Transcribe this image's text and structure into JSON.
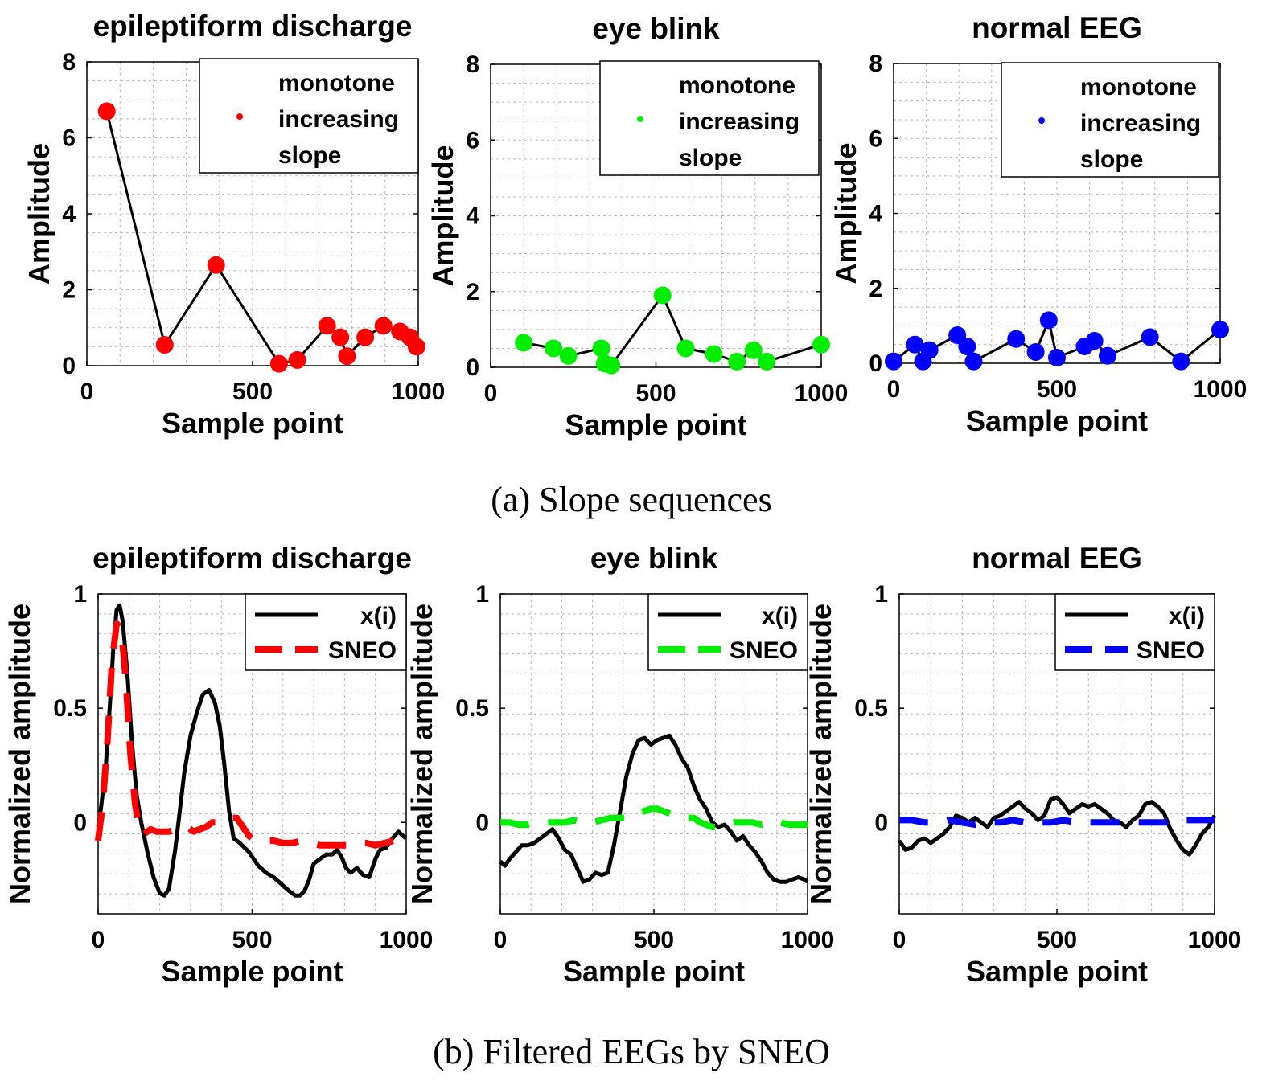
{
  "figure": {
    "caption_a": "(a)  Slope sequences",
    "caption_b": "(b)  Filtered EEGs by SNEO"
  },
  "chart_data": [
    {
      "type": "line",
      "title": "epileptiform discharge",
      "xlabel": "Sample point",
      "ylabel": "Amplitude",
      "xlim": [
        0,
        1000
      ],
      "ylim": [
        0,
        8
      ],
      "xticks": [
        "0",
        "500",
        "1000"
      ],
      "yticks": [
        "0",
        "2",
        "4",
        "6",
        "8"
      ],
      "grid": true,
      "legend": {
        "placement": "top-right",
        "entries": [
          "monotone",
          "increasing",
          "slope"
        ]
      },
      "color": "#ff0000",
      "series": [
        {
          "marker": "circle",
          "x": [
            60,
            235,
            390,
            580,
            635,
            725,
            765,
            785,
            840,
            895,
            945,
            975,
            995
          ],
          "y": [
            6.7,
            0.55,
            2.65,
            0.05,
            0.15,
            1.05,
            0.75,
            0.25,
            0.75,
            1.05,
            0.9,
            0.75,
            0.5
          ]
        }
      ]
    },
    {
      "type": "line",
      "title": "eye blink",
      "xlabel": "Sample point",
      "ylabel": "Amplitude",
      "xlim": [
        0,
        1000
      ],
      "ylim": [
        0,
        8
      ],
      "xticks": [
        "0",
        "500",
        "1000"
      ],
      "yticks": [
        "0",
        "2",
        "4",
        "6",
        "8"
      ],
      "grid": true,
      "legend": {
        "placement": "top-right",
        "entries": [
          "monotone",
          "increasing",
          "slope"
        ]
      },
      "color": "#00ee00",
      "series": [
        {
          "marker": "circle",
          "x": [
            100,
            190,
            235,
            335,
            345,
            365,
            520,
            590,
            675,
            745,
            795,
            835,
            1000
          ],
          "y": [
            0.65,
            0.5,
            0.3,
            0.5,
            0.1,
            0.05,
            1.9,
            0.5,
            0.35,
            0.15,
            0.45,
            0.15,
            0.6
          ]
        }
      ]
    },
    {
      "type": "line",
      "title": "normal EEG",
      "xlabel": "Sample point",
      "ylabel": "Amplitude",
      "xlim": [
        0,
        1000
      ],
      "ylim": [
        0,
        8
      ],
      "xticks": [
        "0",
        "500",
        "1000"
      ],
      "yticks": [
        "0",
        "2",
        "4",
        "6",
        "8"
      ],
      "grid": true,
      "legend": {
        "placement": "top-right",
        "entries": [
          "monotone",
          "increasing",
          "slope"
        ]
      },
      "color": "#0000ff",
      "series": [
        {
          "marker": "circle",
          "x": [
            0,
            65,
            90,
            110,
            195,
            225,
            245,
            375,
            435,
            475,
            500,
            585,
            615,
            655,
            785,
            880,
            1000
          ],
          "y": [
            0.05,
            0.5,
            0.05,
            0.35,
            0.75,
            0.45,
            0.05,
            0.65,
            0.3,
            1.15,
            0.15,
            0.45,
            0.6,
            0.2,
            0.7,
            0.05,
            0.9
          ]
        }
      ]
    },
    {
      "type": "line",
      "title": "epileptiform discharge",
      "xlabel": "Sample point",
      "ylabel": "Normalized amplitude",
      "xlim": [
        0,
        1000
      ],
      "ylim": [
        -0.4,
        1
      ],
      "xticks": [
        "0",
        "500",
        "1000"
      ],
      "yticks": [
        "0",
        "0.5",
        "1"
      ],
      "grid": true,
      "legend": {
        "placement": "top-right"
      },
      "series": [
        {
          "name": "x(i)",
          "color": "#000000",
          "style": "solid",
          "x": [
            0,
            10,
            25,
            40,
            50,
            60,
            70,
            80,
            95,
            110,
            125,
            140,
            160,
            180,
            200,
            215,
            230,
            250,
            265,
            280,
            300,
            320,
            340,
            360,
            380,
            395,
            410,
            425,
            440,
            460,
            475,
            490,
            505,
            520,
            545,
            570,
            595,
            620,
            640,
            655,
            670,
            685,
            700,
            720,
            740,
            760,
            775,
            790,
            805,
            820,
            840,
            860,
            880,
            900,
            915,
            935,
            955,
            975,
            990,
            1000
          ],
          "y": [
            -0.02,
            0.07,
            0.25,
            0.55,
            0.78,
            0.93,
            0.95,
            0.88,
            0.65,
            0.35,
            0.12,
            0.0,
            -0.13,
            -0.24,
            -0.31,
            -0.32,
            -0.29,
            -0.12,
            0.05,
            0.22,
            0.38,
            0.48,
            0.56,
            0.58,
            0.52,
            0.42,
            0.25,
            0.05,
            -0.07,
            -0.09,
            -0.11,
            -0.13,
            -0.16,
            -0.19,
            -0.22,
            -0.24,
            -0.27,
            -0.3,
            -0.32,
            -0.32,
            -0.3,
            -0.25,
            -0.18,
            -0.16,
            -0.14,
            -0.14,
            -0.12,
            -0.15,
            -0.2,
            -0.22,
            -0.2,
            -0.23,
            -0.24,
            -0.16,
            -0.12,
            -0.11,
            -0.07,
            -0.04,
            -0.06,
            -0.07
          ]
        },
        {
          "name": "SNEO",
          "color": "#ff0000",
          "style": "dashed",
          "x": [
            0,
            15,
            30,
            45,
            60,
            75,
            90,
            105,
            120,
            135,
            150,
            170,
            190,
            210,
            230,
            250,
            270,
            290,
            310,
            330,
            350,
            370,
            390,
            410,
            430,
            450,
            470,
            490,
            510,
            540,
            570,
            600,
            630,
            660,
            690,
            720,
            750,
            780,
            810,
            840,
            870,
            900,
            930,
            960,
            990
          ],
          "y": [
            -0.08,
            0.08,
            0.35,
            0.7,
            0.87,
            0.85,
            0.62,
            0.3,
            0.08,
            -0.04,
            -0.05,
            -0.03,
            -0.04,
            -0.04,
            -0.04,
            -0.03,
            -0.02,
            -0.02,
            -0.04,
            -0.03,
            -0.02,
            0.0,
            0.0,
            0.0,
            0.02,
            0.02,
            -0.02,
            -0.06,
            -0.08,
            -0.08,
            -0.08,
            -0.09,
            -0.09,
            -0.08,
            -0.09,
            -0.1,
            -0.1,
            -0.1,
            -0.1,
            -0.09,
            -0.09,
            -0.1,
            -0.09,
            -0.08,
            -0.08
          ]
        }
      ]
    },
    {
      "type": "line",
      "title": "eye blink",
      "xlabel": "Sample point",
      "ylabel": "Normalized amplitude",
      "xlim": [
        0,
        1000
      ],
      "ylim": [
        -0.4,
        1
      ],
      "xticks": [
        "0",
        "500",
        "1000"
      ],
      "yticks": [
        "0",
        "0.5",
        "1"
      ],
      "grid": true,
      "legend": {
        "placement": "top-right"
      },
      "series": [
        {
          "name": "x(i)",
          "color": "#000000",
          "style": "solid",
          "x": [
            0,
            15,
            30,
            50,
            70,
            90,
            110,
            130,
            150,
            170,
            190,
            210,
            230,
            250,
            270,
            290,
            310,
            330,
            350,
            370,
            390,
            410,
            430,
            450,
            470,
            490,
            510,
            530,
            550,
            570,
            590,
            610,
            630,
            650,
            670,
            690,
            710,
            730,
            750,
            770,
            790,
            810,
            830,
            850,
            870,
            890,
            910,
            930,
            950,
            970,
            990,
            1000
          ],
          "y": [
            -0.17,
            -0.19,
            -0.16,
            -0.13,
            -0.1,
            -0.1,
            -0.09,
            -0.07,
            -0.05,
            -0.03,
            -0.07,
            -0.12,
            -0.14,
            -0.2,
            -0.26,
            -0.25,
            -0.22,
            -0.23,
            -0.22,
            -0.1,
            0.05,
            0.2,
            0.3,
            0.36,
            0.37,
            0.34,
            0.36,
            0.37,
            0.38,
            0.34,
            0.28,
            0.24,
            0.16,
            0.1,
            0.06,
            0.0,
            -0.02,
            -0.01,
            -0.04,
            -0.08,
            -0.06,
            -0.1,
            -0.13,
            -0.17,
            -0.22,
            -0.25,
            -0.26,
            -0.26,
            -0.25,
            -0.24,
            -0.25,
            -0.26
          ]
        },
        {
          "name": "SNEO",
          "color": "#00ee00",
          "style": "dashed",
          "x": [
            0,
            30,
            60,
            90,
            120,
            150,
            180,
            210,
            240,
            270,
            300,
            330,
            360,
            390,
            410,
            430,
            450,
            470,
            490,
            510,
            530,
            550,
            570,
            590,
            610,
            630,
            650,
            670,
            690,
            710,
            730,
            760,
            790,
            820,
            850,
            880,
            910,
            940,
            970,
            1000
          ],
          "y": [
            0.0,
            0.0,
            -0.01,
            -0.01,
            0.0,
            0.0,
            0.0,
            0.0,
            0.01,
            0.0,
            0.0,
            0.01,
            0.02,
            0.02,
            0.02,
            0.03,
            0.04,
            0.05,
            0.06,
            0.06,
            0.05,
            0.04,
            0.03,
            0.03,
            0.02,
            0.02,
            0.0,
            -0.01,
            -0.02,
            -0.02,
            -0.01,
            0.0,
            0.0,
            0.0,
            -0.01,
            0.0,
            0.0,
            -0.01,
            -0.01,
            -0.01
          ]
        }
      ]
    },
    {
      "type": "line",
      "title": "normal EEG",
      "xlabel": "Sample point",
      "ylabel": "Normalized amplitude",
      "xlim": [
        0,
        1000
      ],
      "ylim": [
        -0.4,
        1
      ],
      "xticks": [
        "0",
        "500",
        "1000"
      ],
      "yticks": [
        "0",
        "0.5",
        "1"
      ],
      "grid": true,
      "legend": {
        "placement": "top-right"
      },
      "series": [
        {
          "name": "x(i)",
          "color": "#000000",
          "style": "solid",
          "x": [
            0,
            20,
            40,
            60,
            80,
            100,
            120,
            140,
            160,
            180,
            200,
            220,
            240,
            260,
            280,
            300,
            320,
            340,
            360,
            380,
            400,
            420,
            440,
            460,
            480,
            500,
            520,
            540,
            560,
            580,
            600,
            620,
            640,
            660,
            680,
            700,
            720,
            740,
            760,
            780,
            800,
            820,
            840,
            860,
            880,
            900,
            920,
            940,
            960,
            980,
            1000
          ],
          "y": [
            -0.08,
            -0.12,
            -0.11,
            -0.08,
            -0.07,
            -0.09,
            -0.07,
            -0.05,
            -0.02,
            0.03,
            0.02,
            0.0,
            0.02,
            0.0,
            -0.02,
            0.02,
            0.03,
            0.05,
            0.07,
            0.09,
            0.06,
            0.04,
            0.01,
            0.03,
            0.1,
            0.11,
            0.08,
            0.04,
            0.06,
            0.08,
            0.07,
            0.08,
            0.06,
            0.04,
            0.01,
            0.0,
            -0.02,
            0.01,
            0.03,
            0.08,
            0.09,
            0.07,
            0.04,
            -0.03,
            -0.08,
            -0.12,
            -0.14,
            -0.1,
            -0.05,
            -0.02,
            0.03
          ]
        },
        {
          "name": "SNEO",
          "color": "#0000ff",
          "style": "dashed",
          "x": [
            0,
            40,
            80,
            120,
            160,
            200,
            240,
            280,
            320,
            360,
            400,
            440,
            480,
            520,
            560,
            600,
            640,
            680,
            720,
            760,
            800,
            840,
            880,
            920,
            960,
            1000
          ],
          "y": [
            0.01,
            0.01,
            0.0,
            0.0,
            0.01,
            0.0,
            -0.01,
            0.0,
            0.0,
            0.01,
            0.0,
            0.0,
            0.0,
            0.01,
            0.0,
            0.0,
            0.0,
            0.0,
            0.0,
            0.0,
            0.0,
            0.0,
            0.01,
            0.01,
            0.01,
            0.01
          ]
        }
      ]
    }
  ]
}
